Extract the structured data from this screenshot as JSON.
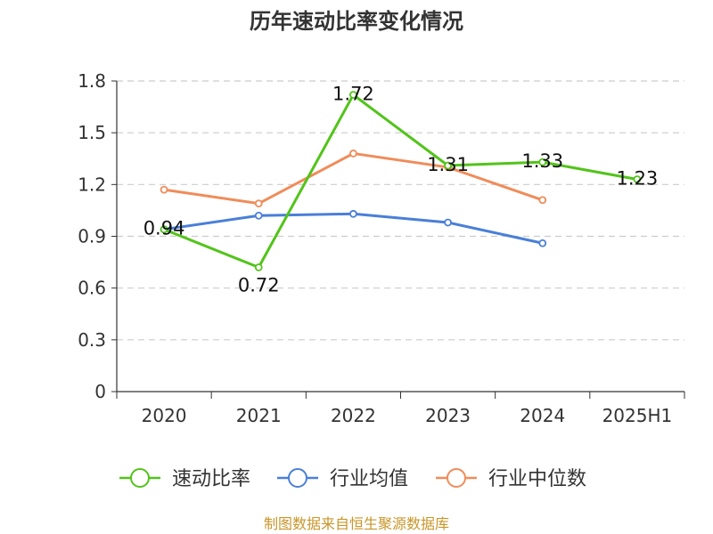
{
  "chart_data": {
    "type": "line",
    "title": "历年速动比率变化情况",
    "categories": [
      "2020",
      "2021",
      "2022",
      "2023",
      "2024",
      "2025H1"
    ],
    "ylim": [
      0,
      1.8
    ],
    "yticks": [
      "0",
      "0.3",
      "0.6",
      "0.9",
      "1.2",
      "1.5",
      "1.8"
    ],
    "grid": true,
    "legend_position": "bottom",
    "series": [
      {
        "name": "速动比率",
        "color": "#52c41a",
        "values": [
          0.94,
          0.72,
          1.72,
          1.31,
          1.33,
          1.23
        ],
        "labels": [
          "0.94",
          "0.72",
          "1.72",
          "1.31",
          "1.33",
          "1.23"
        ]
      },
      {
        "name": "行业均值",
        "color": "#4a7fd8",
        "values": [
          0.94,
          1.02,
          1.03,
          0.98,
          0.86,
          null
        ]
      },
      {
        "name": "行业中位数",
        "color": "#f08c5a",
        "values": [
          1.17,
          1.09,
          1.38,
          1.3,
          1.11,
          null
        ]
      }
    ]
  },
  "source": "制图数据来自恒生聚源数据库"
}
